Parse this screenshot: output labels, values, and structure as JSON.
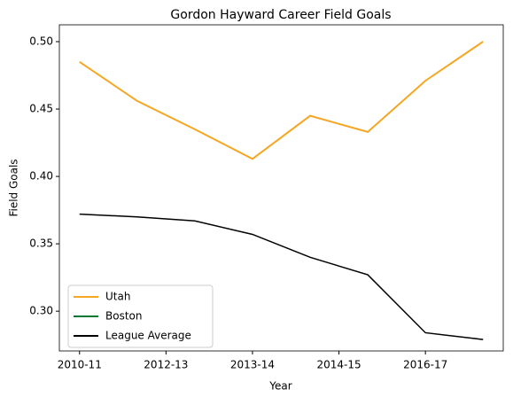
{
  "chart_data": {
    "type": "line",
    "title": "Gordon Hayward Career Field Goals",
    "xlabel": "Year",
    "ylabel": "Field Goals",
    "x": [
      0,
      1,
      2,
      3,
      4,
      5,
      6,
      7
    ],
    "series": [
      {
        "name": "Utah",
        "color": "#f5a623",
        "values": [
          0.485,
          0.456,
          0.435,
          0.413,
          0.445,
          0.433,
          0.471,
          0.5
        ]
      },
      {
        "name": "Boston",
        "color": "#007a33",
        "values": [
          null,
          null,
          null,
          null,
          null,
          null,
          null,
          null
        ]
      },
      {
        "name": "League Average",
        "color": "#000000",
        "values": [
          0.372,
          0.37,
          0.367,
          0.357,
          0.34,
          0.327,
          0.284,
          0.279
        ]
      }
    ],
    "xlim": [
      -0.35,
      7.35
    ],
    "xticks": [
      {
        "value": 0,
        "label": "2010-11"
      },
      {
        "value": 1.5,
        "label": "2012-13"
      },
      {
        "value": 3,
        "label": "2013-14"
      },
      {
        "value": 4.5,
        "label": "2014-15"
      },
      {
        "value": 6,
        "label": "2016-17"
      }
    ],
    "ylim": [
      0.2705,
      0.5125
    ],
    "yticks": [
      {
        "value": 0.3,
        "label": "0.30"
      },
      0.35,
      {
        "value": 0.4,
        "label": "0.40"
      },
      0.45,
      {
        "value": 0.5,
        "label": "0.50"
      }
    ],
    "legend": "lower left",
    "grid": false
  }
}
